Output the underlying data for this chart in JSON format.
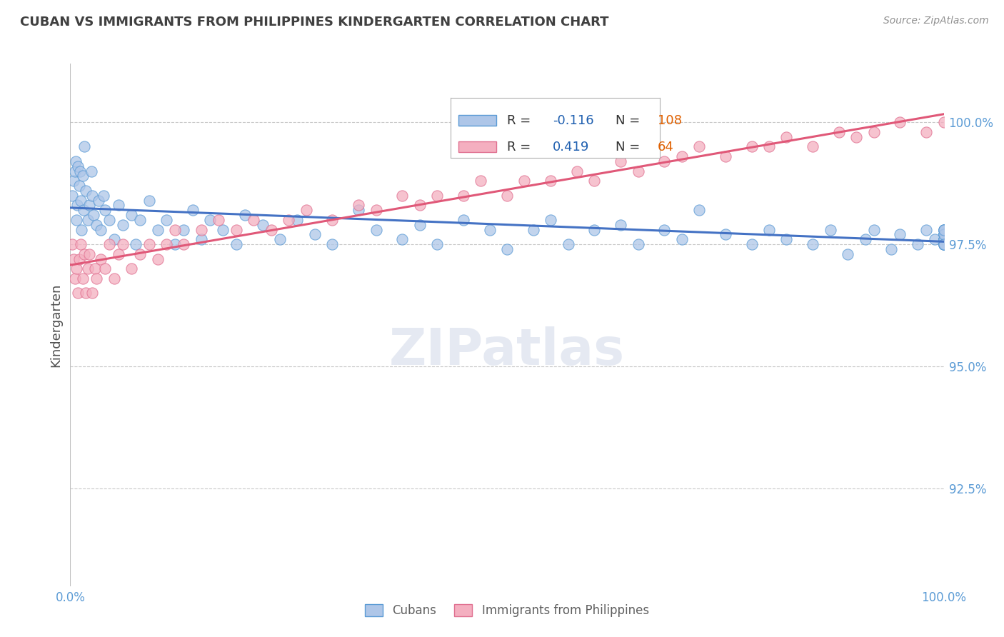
{
  "title": "CUBAN VS IMMIGRANTS FROM PHILIPPINES KINDERGARTEN CORRELATION CHART",
  "source": "Source: ZipAtlas.com",
  "ylabel": "Kindergarten",
  "xlim": [
    0.0,
    100.0
  ],
  "ylim": [
    90.5,
    101.2
  ],
  "yticks": [
    92.5,
    95.0,
    97.5,
    100.0
  ],
  "ytick_labels": [
    "92.5%",
    "95.0%",
    "97.5%",
    "100.0%"
  ],
  "cubans_R": -0.116,
  "cubans_N": 108,
  "philippines_R": 0.419,
  "philippines_N": 64,
  "cubans_color": "#aec6e8",
  "philippines_color": "#f4afc0",
  "cubans_edge_color": "#5b9bd5",
  "philippines_edge_color": "#e07090",
  "cubans_line_color": "#4472c4",
  "philippines_line_color": "#e05878",
  "background_color": "#ffffff",
  "grid_color": "#c8c8c8",
  "title_color": "#404040",
  "ytick_color": "#5b9bd5",
  "xtick_color": "#5b9bd5",
  "legend_label_color": "#333333",
  "legend_R_color": "#2060b0",
  "legend_N_color": "#e06000",
  "watermark_color": "#d0d8e8",
  "watermark_alpha": 0.55,
  "cubans_x": [
    0.2,
    0.4,
    0.5,
    0.6,
    0.7,
    0.8,
    0.9,
    1.0,
    1.1,
    1.2,
    1.3,
    1.4,
    1.5,
    1.6,
    1.8,
    2.0,
    2.2,
    2.4,
    2.5,
    2.7,
    3.0,
    3.2,
    3.5,
    3.8,
    4.0,
    4.5,
    5.0,
    5.5,
    6.0,
    7.0,
    7.5,
    8.0,
    9.0,
    10.0,
    11.0,
    12.0,
    13.0,
    14.0,
    15.0,
    16.0,
    17.5,
    19.0,
    20.0,
    22.0,
    24.0,
    26.0,
    28.0,
    30.0,
    33.0,
    35.0,
    38.0,
    40.0,
    42.0,
    45.0,
    48.0,
    50.0,
    53.0,
    55.0,
    57.0,
    60.0,
    63.0,
    65.0,
    68.0,
    70.0,
    72.0,
    75.0,
    78.0,
    80.0,
    82.0,
    85.0,
    87.0,
    89.0,
    91.0,
    92.0,
    94.0,
    95.0,
    97.0,
    98.0,
    99.0,
    100.0,
    100.0,
    100.0,
    100.0,
    100.0,
    100.0,
    100.0,
    100.0,
    100.0,
    100.0,
    100.0,
    100.0,
    100.0,
    100.0,
    100.0,
    100.0,
    100.0,
    100.0,
    100.0,
    100.0,
    100.0,
    100.0,
    100.0,
    100.0,
    100.0,
    100.0,
    100.0,
    100.0,
    100.0
  ],
  "cubans_y": [
    98.5,
    98.8,
    99.0,
    99.2,
    98.0,
    98.3,
    99.1,
    98.7,
    99.0,
    98.4,
    97.8,
    98.9,
    98.2,
    99.5,
    98.6,
    98.0,
    98.3,
    99.0,
    98.5,
    98.1,
    97.9,
    98.4,
    97.8,
    98.5,
    98.2,
    98.0,
    97.6,
    98.3,
    97.9,
    98.1,
    97.5,
    98.0,
    98.4,
    97.8,
    98.0,
    97.5,
    97.8,
    98.2,
    97.6,
    98.0,
    97.8,
    97.5,
    98.1,
    97.9,
    97.6,
    98.0,
    97.7,
    97.5,
    98.2,
    97.8,
    97.6,
    97.9,
    97.5,
    98.0,
    97.8,
    97.4,
    97.8,
    98.0,
    97.5,
    97.8,
    97.9,
    97.5,
    97.8,
    97.6,
    98.2,
    97.7,
    97.5,
    97.8,
    97.6,
    97.5,
    97.8,
    97.3,
    97.6,
    97.8,
    97.4,
    97.7,
    97.5,
    97.8,
    97.6,
    97.5,
    97.7,
    97.5,
    97.8,
    97.6,
    97.5,
    97.7,
    97.5,
    97.8,
    97.6,
    97.5,
    97.7,
    97.5,
    97.8,
    97.6,
    97.5,
    97.7,
    97.5,
    97.8,
    97.6,
    97.5,
    97.7,
    97.5,
    97.8,
    97.6,
    97.5,
    97.7,
    97.5,
    97.8
  ],
  "philippines_x": [
    0.2,
    0.4,
    0.5,
    0.7,
    0.9,
    1.0,
    1.2,
    1.4,
    1.6,
    1.8,
    2.0,
    2.2,
    2.5,
    2.8,
    3.0,
    3.5,
    4.0,
    4.5,
    5.0,
    5.5,
    6.0,
    7.0,
    8.0,
    9.0,
    10.0,
    11.0,
    12.0,
    13.0,
    15.0,
    17.0,
    19.0,
    21.0,
    23.0,
    25.0,
    27.0,
    30.0,
    33.0,
    35.0,
    38.0,
    40.0,
    42.0,
    45.0,
    47.0,
    50.0,
    52.0,
    55.0,
    58.0,
    60.0,
    63.0,
    65.0,
    68.0,
    70.0,
    72.0,
    75.0,
    78.0,
    80.0,
    82.0,
    85.0,
    88.0,
    90.0,
    92.0,
    95.0,
    98.0,
    100.0
  ],
  "philippines_y": [
    97.5,
    97.2,
    96.8,
    97.0,
    96.5,
    97.2,
    97.5,
    96.8,
    97.3,
    96.5,
    97.0,
    97.3,
    96.5,
    97.0,
    96.8,
    97.2,
    97.0,
    97.5,
    96.8,
    97.3,
    97.5,
    97.0,
    97.3,
    97.5,
    97.2,
    97.5,
    97.8,
    97.5,
    97.8,
    98.0,
    97.8,
    98.0,
    97.8,
    98.0,
    98.2,
    98.0,
    98.3,
    98.2,
    98.5,
    98.3,
    98.5,
    98.5,
    98.8,
    98.5,
    98.8,
    98.8,
    99.0,
    98.8,
    99.2,
    99.0,
    99.2,
    99.3,
    99.5,
    99.3,
    99.5,
    99.5,
    99.7,
    99.5,
    99.8,
    99.7,
    99.8,
    100.0,
    99.8,
    100.0
  ]
}
